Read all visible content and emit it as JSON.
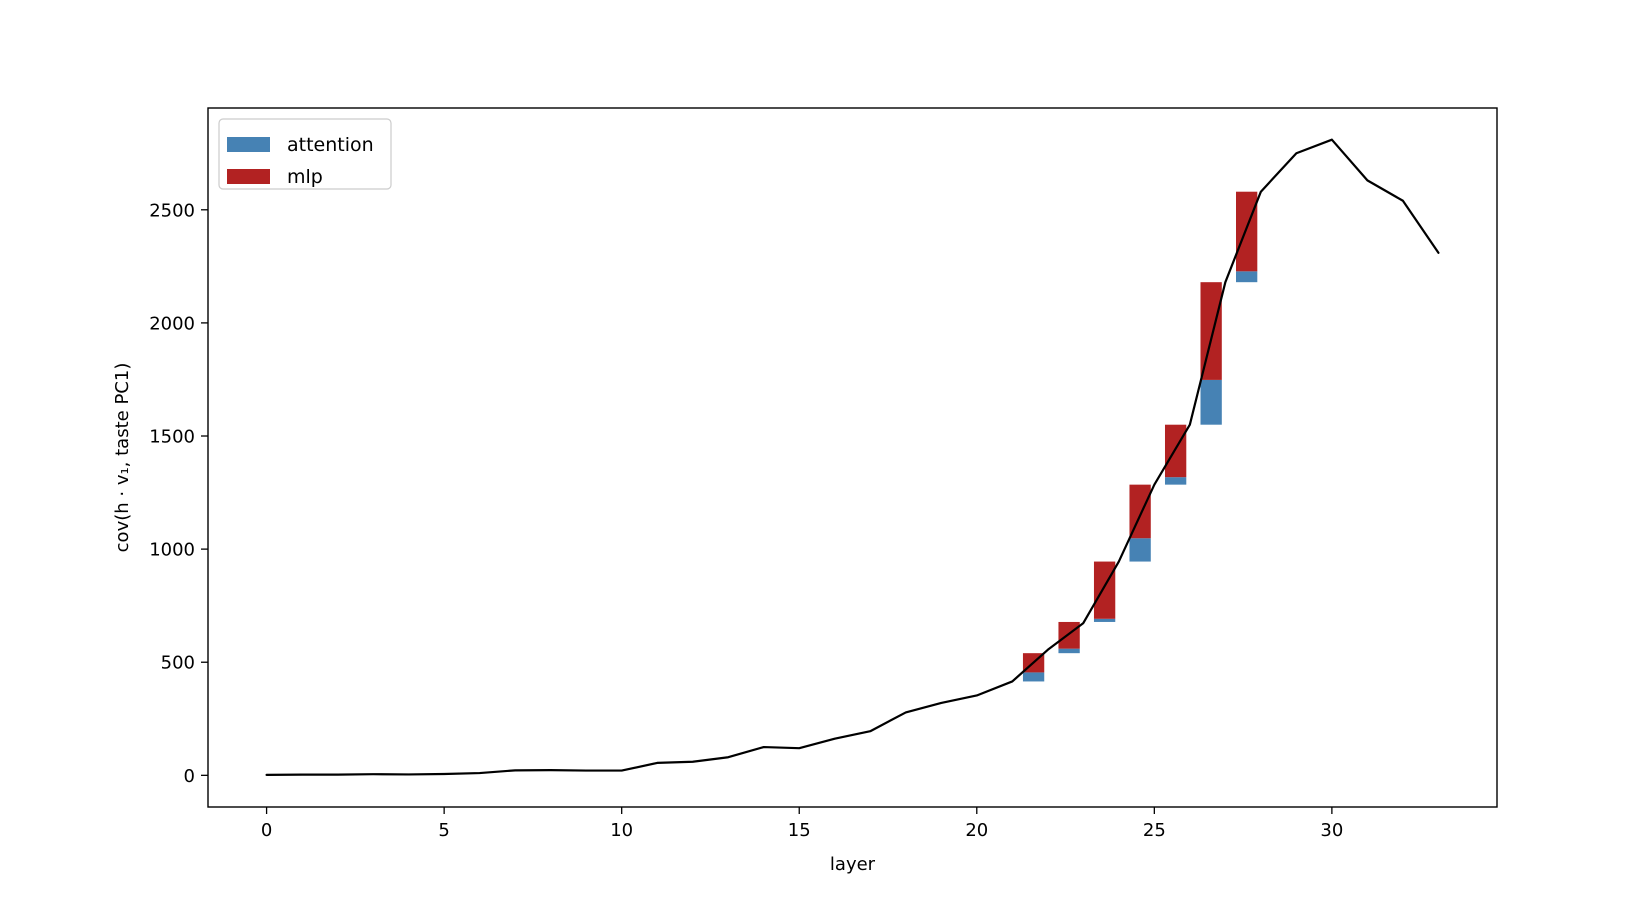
{
  "chart_data": {
    "type": "bar",
    "title": "",
    "xlabel": "layer",
    "ylabel": "cov(h · v₁,  taste PC1)",
    "xlim": [
      -1.65,
      34.65
    ],
    "ylim": [
      -140,
      2950
    ],
    "xticks": [
      0,
      5,
      10,
      15,
      20,
      25,
      30
    ],
    "yticks": [
      0,
      500,
      1000,
      1500,
      2000,
      2500
    ],
    "grid": false,
    "legend": {
      "position": "top-left",
      "entries": [
        {
          "label": "attention",
          "color": "#4682b4"
        },
        {
          "label": "mlp",
          "color": "#b22222"
        }
      ]
    },
    "line": {
      "name": "",
      "color": "#000000",
      "x": [
        0,
        1,
        2,
        3,
        4,
        5,
        6,
        7,
        8,
        9,
        10,
        11,
        12,
        13,
        14,
        15,
        16,
        17,
        18,
        19,
        20,
        21,
        22,
        23,
        24,
        25,
        26,
        27,
        28,
        29,
        30,
        31,
        32,
        33
      ],
      "y": [
        2,
        3,
        3,
        5,
        4,
        6,
        10,
        22,
        23,
        21,
        21,
        55,
        60,
        80,
        125,
        120,
        162,
        195,
        278,
        320,
        353,
        415,
        555,
        673,
        945,
        1285,
        1550,
        2180,
        2580,
        2750,
        2810,
        2630,
        2540,
        2310
      ]
    },
    "bars": {
      "width": 0.6,
      "x": [
        21.6,
        22.6,
        23.6,
        24.6,
        25.6,
        26.6,
        27.6
      ],
      "attention": [
        {
          "bottom": 415,
          "top": 455
        },
        {
          "bottom": 540,
          "top": 560
        },
        {
          "bottom": 678,
          "top": 692
        },
        {
          "bottom": 945,
          "top": 1048
        },
        {
          "bottom": 1285,
          "top": 1318
        },
        {
          "bottom": 1550,
          "top": 1748
        },
        {
          "bottom": 2180,
          "top": 2228
        }
      ],
      "mlp": [
        {
          "bottom": 455,
          "top": 540
        },
        {
          "bottom": 560,
          "top": 678
        },
        {
          "bottom": 692,
          "top": 945
        },
        {
          "bottom": 1048,
          "top": 1285
        },
        {
          "bottom": 1318,
          "top": 1550
        },
        {
          "bottom": 1748,
          "top": 2180
        },
        {
          "bottom": 2228,
          "top": 2580
        }
      ]
    }
  }
}
